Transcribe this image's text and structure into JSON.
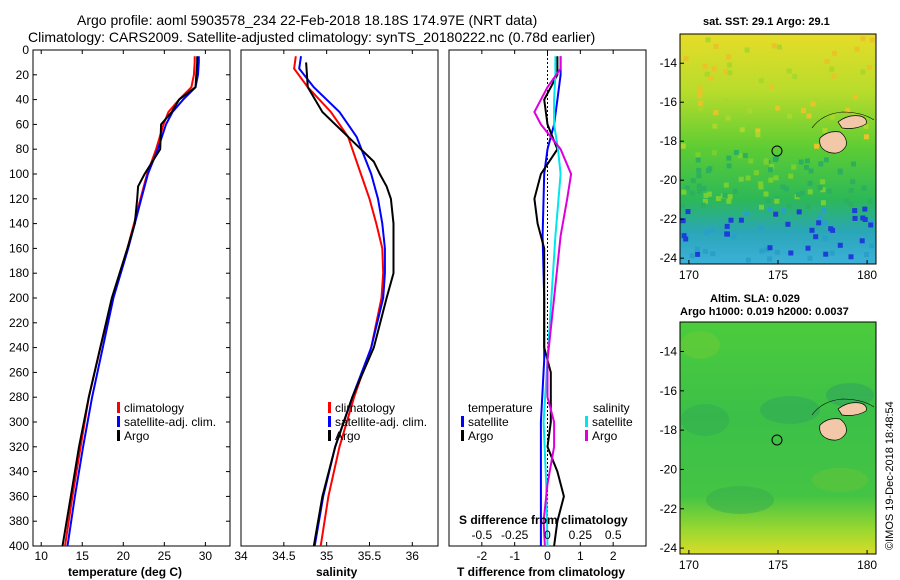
{
  "header": {
    "line1": "Argo profile: aoml 5903578_234 22-Feb-2018 18.18S 174.97E (NRT data)",
    "line2": "Climatology: CARS2009. Satellite-adjusted climatology: synTS_20180222.nc (0.78d earlier)"
  },
  "colors": {
    "climatology": "#ff0000",
    "satellite": "#0000ff",
    "argo": "#000000",
    "sat_salinity": "#00e5ee",
    "argo_salinity": "#dd00dd"
  },
  "chart_data": [
    {
      "id": "temperature",
      "type": "line",
      "xlabel": "temperature (deg C)",
      "ylabel": "",
      "xlim": [
        9,
        33
      ],
      "ylim": [
        400,
        0
      ],
      "xticks": [
        "10",
        "15",
        "20",
        "25",
        "30"
      ],
      "xtick_values": [
        10,
        15,
        20,
        25,
        30
      ],
      "yticks": [
        "0",
        "20",
        "40",
        "60",
        "80",
        "100",
        "120",
        "140",
        "160",
        "180",
        "200",
        "220",
        "240",
        "260",
        "280",
        "300",
        "320",
        "340",
        "360",
        "380",
        "400"
      ],
      "legend": [
        "climatology",
        "satellite-adj. clim.",
        "Argo"
      ],
      "series": [
        {
          "name": "climatology",
          "color": "#ff0000",
          "depth": [
            5,
            10,
            20,
            30,
            40,
            50,
            60,
            80,
            100,
            120,
            140,
            160,
            200,
            240,
            280,
            320,
            360,
            400
          ],
          "values": [
            28.7,
            28.7,
            28.6,
            28.3,
            26.8,
            25.5,
            24.9,
            24.0,
            22.9,
            22.1,
            21.3,
            20.5,
            18.7,
            17.2,
            15.8,
            14.8,
            13.8,
            12.9
          ]
        },
        {
          "name": "satellite-adj. clim.",
          "color": "#0000ff",
          "depth": [
            5,
            10,
            20,
            30,
            40,
            50,
            60,
            80,
            100,
            120,
            140,
            160,
            200,
            240,
            280,
            320,
            360,
            400
          ],
          "values": [
            29.2,
            29.2,
            29.1,
            28.8,
            27.3,
            26.0,
            25.2,
            24.2,
            23.0,
            22.2,
            21.4,
            20.6,
            18.8,
            17.5,
            16.2,
            15.1,
            14.1,
            13.2
          ]
        },
        {
          "name": "Argo",
          "color": "#000000",
          "depth": [
            5,
            10,
            20,
            30,
            40,
            50,
            60,
            80,
            100,
            110,
            120,
            140,
            160,
            200,
            240,
            280,
            320,
            360,
            400
          ],
          "values": [
            29.0,
            29.0,
            28.9,
            28.8,
            26.8,
            25.9,
            24.6,
            24.5,
            22.6,
            21.8,
            21.7,
            21.4,
            20.5,
            18.6,
            17.2,
            15.8,
            14.6,
            13.6,
            12.6
          ]
        }
      ]
    },
    {
      "id": "salinity",
      "type": "line",
      "xlabel": "salinity",
      "ylabel": "",
      "xlim": [
        34,
        36.3
      ],
      "ylim": [
        400,
        0
      ],
      "xticks": [
        "34",
        "34.5",
        "35",
        "35.5",
        "36"
      ],
      "xtick_values": [
        34,
        34.5,
        35,
        35.5,
        36
      ],
      "legend": [
        "climatology",
        "satellite-adj. clim.",
        "Argo"
      ],
      "series": [
        {
          "name": "climatology",
          "color": "#ff0000",
          "depth": [
            5,
            15,
            30,
            50,
            70,
            100,
            120,
            140,
            160,
            180,
            200,
            240,
            280,
            320,
            360,
            400
          ],
          "values": [
            34.64,
            34.62,
            34.78,
            35.05,
            35.25,
            35.4,
            35.5,
            35.58,
            35.65,
            35.66,
            35.64,
            35.52,
            35.32,
            35.15,
            35.02,
            34.93
          ]
        },
        {
          "name": "satellite-adj. clim.",
          "color": "#0000ff",
          "depth": [
            5,
            15,
            30,
            50,
            70,
            100,
            120,
            140,
            160,
            180,
            200,
            240,
            280,
            320,
            360,
            400
          ],
          "values": [
            34.7,
            34.68,
            34.85,
            35.15,
            35.35,
            35.52,
            35.6,
            35.65,
            35.68,
            35.68,
            35.66,
            35.52,
            35.3,
            35.1,
            34.96,
            34.86
          ]
        },
        {
          "name": "Argo",
          "color": "#000000",
          "depth": [
            10,
            30,
            50,
            70,
            90,
            100,
            110,
            120,
            140,
            160,
            180,
            200,
            240,
            280,
            320,
            360,
            400
          ],
          "values": [
            34.76,
            34.78,
            34.95,
            35.25,
            35.55,
            35.62,
            35.7,
            35.75,
            35.78,
            35.78,
            35.78,
            35.7,
            35.55,
            35.3,
            35.1,
            34.95,
            34.85
          ]
        }
      ]
    },
    {
      "id": "difference",
      "type": "line",
      "xlabel": "T difference from climatology",
      "ylabel": "",
      "top_xlabel": "S difference from climatology",
      "xlim": [
        -3,
        3
      ],
      "ylim": [
        400,
        0
      ],
      "xticks": [
        "-2",
        "-1",
        "0",
        "1",
        "2"
      ],
      "xtick_values": [
        -2,
        -1,
        0,
        1,
        2
      ],
      "s_ticks": [
        "-0.5",
        "-0.25",
        "0",
        "0.25",
        "0.5"
      ],
      "legend_temperature_title": "temperature",
      "legend_salinity_title": "salinity",
      "legend_temperature": [
        "satellite",
        "Argo"
      ],
      "legend_salinity": [
        "satellite",
        "Argo"
      ],
      "series": [
        {
          "name": "T satellite",
          "color": "#0000ff",
          "depth": [
            5,
            20,
            40,
            60,
            80,
            100,
            150,
            200,
            250,
            300,
            350,
            400
          ],
          "values": [
            0.4,
            0.4,
            0.3,
            0.2,
            0.0,
            -0.1,
            -0.15,
            -0.1,
            -0.1,
            -0.2,
            -0.2,
            -0.2
          ]
        },
        {
          "name": "T Argo",
          "color": "#000000",
          "depth": [
            5,
            20,
            40,
            60,
            80,
            100,
            120,
            140,
            160,
            200,
            240,
            260,
            280,
            300,
            320,
            340,
            360,
            380,
            400
          ],
          "values": [
            0.3,
            0.3,
            -0.1,
            0.0,
            0.3,
            -0.2,
            -0.4,
            -0.3,
            -0.1,
            -0.1,
            -0.1,
            0.1,
            0.1,
            0.1,
            0.0,
            0.3,
            0.5,
            0.3,
            0.2
          ]
        },
        {
          "name": "S satellite",
          "color": "#00e5ee",
          "depth": [
            5,
            20,
            40,
            60,
            80,
            100,
            150,
            200,
            250,
            300,
            350,
            400
          ],
          "values": [
            0.06,
            0.06,
            0.05,
            0.05,
            0.08,
            0.1,
            0.06,
            0.03,
            0.0,
            -0.03,
            -0.01,
            0.0
          ]
        },
        {
          "name": "S Argo",
          "color": "#dd00dd",
          "depth": [
            5,
            15,
            30,
            40,
            50,
            60,
            80,
            100,
            120,
            150,
            200,
            250,
            280,
            300,
            320,
            350,
            380,
            400
          ],
          "values": [
            0.1,
            0.1,
            0.0,
            -0.05,
            -0.1,
            -0.05,
            0.1,
            0.18,
            0.15,
            0.1,
            0.05,
            0.0,
            0.0,
            0.05,
            0.05,
            0.0,
            -0.03,
            -0.02
          ]
        }
      ]
    }
  ],
  "maps": {
    "sst_title": "sat. SST: 29.1 Argo: 29.1",
    "sla_title1": "Altim. SLA: 0.029",
    "sla_title2": "Argo h1000: 0.019 h2000: 0.0037",
    "lon_ticks": [
      "170",
      "175",
      "180"
    ],
    "lat_ticks": [
      "-14",
      "-16",
      "-18",
      "-20",
      "-22",
      "-24"
    ],
    "lon_range": [
      169.5,
      180.5
    ],
    "lat_range": [
      -12.5,
      -24.3
    ],
    "argo_lon": 174.97,
    "argo_lat": -18.18
  },
  "footer": {
    "credit": "©IMOS 19-Dec-2018 18:48:54"
  }
}
